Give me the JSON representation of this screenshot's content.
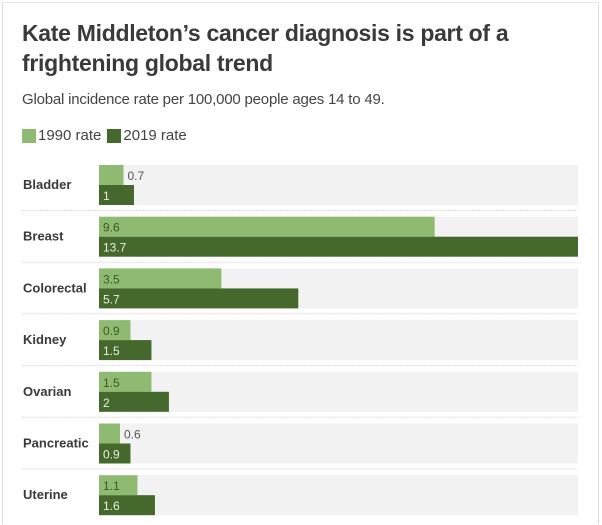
{
  "chart_data": {
    "type": "bar",
    "orientation": "horizontal",
    "title": "Kate Middleton’s cancer diagnosis is part of a frightening global trend",
    "subtitle": "Global incidence rate per 100,000 people ages 14 to 49.",
    "xlabel": "",
    "ylabel": "",
    "xlim": [
      0,
      13.7
    ],
    "grid": false,
    "legend_position": "top-left",
    "categories": [
      "Bladder",
      "Breast",
      "Colorectal",
      "Kidney",
      "Ovarian",
      "Pancreatic",
      "Uterine"
    ],
    "series": [
      {
        "name": "1990 rate",
        "color": "#8fba72",
        "values": [
          0.7,
          9.6,
          3.5,
          0.9,
          1.5,
          0.6,
          1.1
        ],
        "labels": [
          "0.7",
          "9.6",
          "3.5",
          "0.9",
          "1.5",
          "0.6",
          "1.1"
        ]
      },
      {
        "name": "2019 rate",
        "color": "#45682d",
        "values": [
          1,
          13.7,
          5.7,
          1.5,
          2,
          0.9,
          1.6
        ],
        "labels": [
          "1",
          "13.7",
          "5.7",
          "1.5",
          "2",
          "0.9",
          "1.6"
        ]
      }
    ],
    "track_color": "#f2f2f2"
  }
}
